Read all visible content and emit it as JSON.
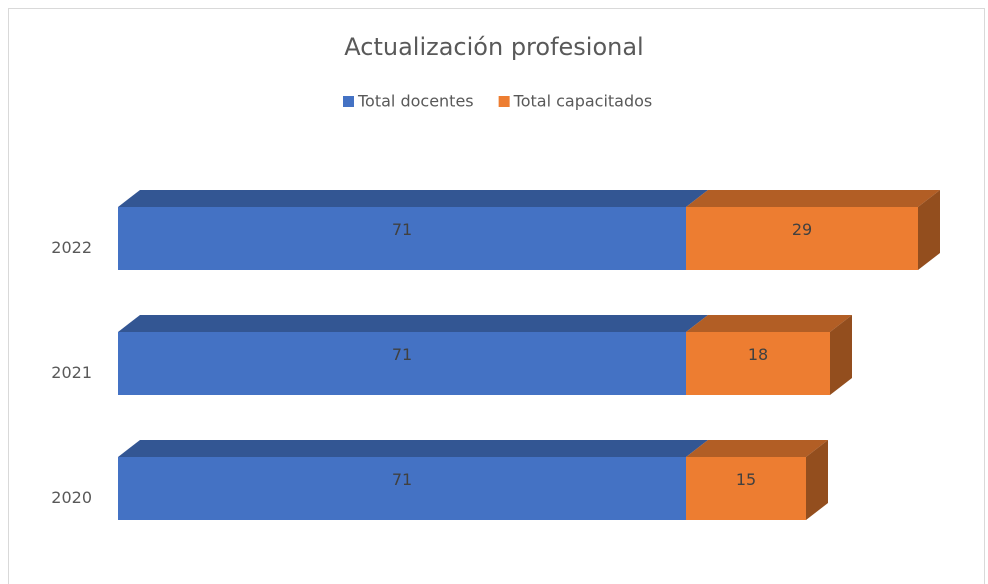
{
  "chart_data": {
    "type": "bar3d_stacked_horizontal",
    "title": "Actualización profesional",
    "categories": [
      "2020",
      "2021",
      "2022"
    ],
    "series": [
      {
        "name": "Total docentes",
        "color": "#4472c4",
        "values": [
          71,
          71,
          71
        ]
      },
      {
        "name": "Total capacitados",
        "color": "#ed7d31",
        "values": [
          15,
          18,
          29
        ]
      }
    ],
    "legend": "top"
  }
}
